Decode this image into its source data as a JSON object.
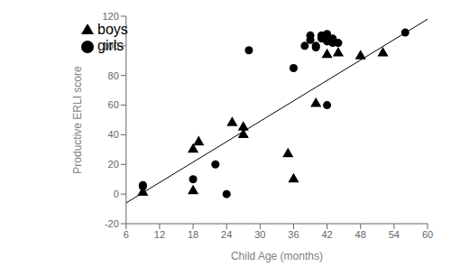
{
  "chart_data": {
    "type": "scatter",
    "xlabel": "Child Age (months)",
    "ylabel": "Productive ERLI score",
    "xlim": [
      6,
      60
    ],
    "ylim": [
      -20,
      120
    ],
    "xticks": [
      6,
      12,
      18,
      24,
      30,
      36,
      42,
      48,
      54,
      60
    ],
    "yticks": [
      -20,
      0,
      20,
      40,
      60,
      80,
      100,
      120
    ],
    "grid": false,
    "legend": "upper left",
    "series": [
      {
        "name": "girls",
        "type": "scatter",
        "marker": "circle",
        "color": "#000000",
        "x": [
          9,
          9,
          18,
          22,
          24,
          28,
          36,
          38,
          39,
          39,
          40,
          40,
          41,
          41,
          42,
          42,
          42,
          43,
          43,
          44,
          56
        ],
        "values": [
          6,
          5,
          10,
          20,
          0,
          97,
          85,
          100,
          107,
          104,
          100,
          99,
          107,
          105,
          103,
          60,
          108,
          102,
          105,
          102,
          109
        ]
      },
      {
        "name": "boys",
        "type": "scatter",
        "marker": "triangle",
        "color": "#000000",
        "x": [
          9,
          18,
          18,
          19,
          25,
          27,
          27,
          35,
          36,
          40,
          42,
          44,
          48,
          52
        ],
        "values": [
          1,
          2,
          30,
          35,
          48,
          45,
          40,
          27,
          10,
          61,
          94,
          95,
          93,
          95
        ]
      },
      {
        "type": "line",
        "color": "#000000",
        "x": [
          6,
          60
        ],
        "values": [
          -6,
          118
        ]
      }
    ]
  }
}
